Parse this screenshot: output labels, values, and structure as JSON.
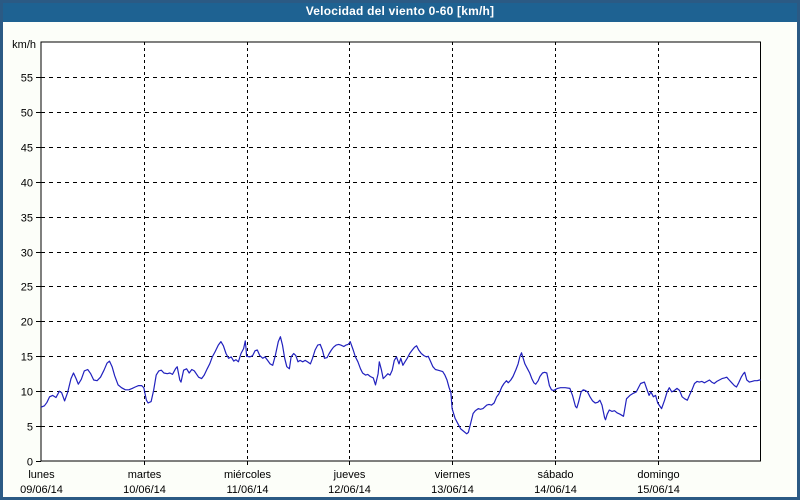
{
  "window": {
    "title": "Velocidad del viento 0-60 [km/h]"
  },
  "colors": {
    "title_bar_bg": "#1E6292",
    "title_text": "#FFFFFF",
    "frame_border": "#2B5A84",
    "page_bg": "#FCFEF9",
    "plot_bg": "#FFFFFF",
    "grid": "#000000",
    "axis_text": "#000000",
    "line": "#2121BE"
  },
  "chart_data": {
    "type": "line",
    "title": "Velocidad del viento 0-60 [km/h]",
    "ylabel": "km/h",
    "ylim": [
      0,
      60
    ],
    "yticks": [
      0,
      5,
      10,
      15,
      20,
      25,
      30,
      35,
      40,
      45,
      50,
      55
    ],
    "grid": true,
    "legend_position": "none",
    "x_unit": "hours_since_monday_00",
    "xlim": [
      0,
      168
    ],
    "x_ticks": [
      {
        "hour": 0,
        "day": "lunes",
        "date": "09/06/14"
      },
      {
        "hour": 24,
        "day": "martes",
        "date": "10/06/14"
      },
      {
        "hour": 48,
        "day": "miércoles",
        "date": "11/06/14"
      },
      {
        "hour": 72,
        "day": "jueves",
        "date": "12/06/14"
      },
      {
        "hour": 96,
        "day": "viernes",
        "date": "13/06/14"
      },
      {
        "hour": 120,
        "day": "sábado",
        "date": "14/06/14"
      },
      {
        "hour": 144,
        "day": "domingo",
        "date": "15/06/14"
      }
    ],
    "series": [
      {
        "name": "wind_speed_kmh",
        "points": [
          [
            0,
            7.7
          ],
          [
            0.8,
            7.9
          ],
          [
            1.4,
            8.4
          ],
          [
            2,
            9.2
          ],
          [
            2.7,
            9.4
          ],
          [
            3.5,
            9.1
          ],
          [
            4.3,
            10.0
          ],
          [
            4.8,
            9.8
          ],
          [
            5.5,
            8.6
          ],
          [
            6.2,
            9.8
          ],
          [
            7,
            11.8
          ],
          [
            7.6,
            12.6
          ],
          [
            8.2,
            11.8
          ],
          [
            8.7,
            11.0
          ],
          [
            9.4,
            11.7
          ],
          [
            10.1,
            12.9
          ],
          [
            10.9,
            13.1
          ],
          [
            11.6,
            12.5
          ],
          [
            12.3,
            11.6
          ],
          [
            13.1,
            11.5
          ],
          [
            13.9,
            12.0
          ],
          [
            14.7,
            13.0
          ],
          [
            15.4,
            14.0
          ],
          [
            16,
            14.3
          ],
          [
            16.6,
            13.5
          ],
          [
            17.2,
            12.2
          ],
          [
            18,
            10.9
          ],
          [
            18.8,
            10.5
          ],
          [
            19.7,
            10.2
          ],
          [
            20.5,
            10.2
          ],
          [
            21.3,
            10.4
          ],
          [
            22,
            10.6
          ],
          [
            22.8,
            10.8
          ],
          [
            23.5,
            10.8
          ],
          [
            24,
            10.5
          ],
          [
            24.6,
            8.7
          ],
          [
            25,
            8.3
          ],
          [
            25.7,
            8.5
          ],
          [
            26.3,
            10.1
          ],
          [
            26.9,
            12.3
          ],
          [
            27.5,
            12.9
          ],
          [
            28.1,
            13.0
          ],
          [
            28.7,
            12.6
          ],
          [
            29.5,
            12.5
          ],
          [
            30.1,
            12.6
          ],
          [
            30.7,
            12.4
          ],
          [
            31.4,
            13.2
          ],
          [
            31.8,
            13.5
          ],
          [
            32.4,
            11.6
          ],
          [
            32.7,
            11.3
          ],
          [
            33.3,
            13.0
          ],
          [
            34,
            13.2
          ],
          [
            34.6,
            12.6
          ],
          [
            35.2,
            13.1
          ],
          [
            35.8,
            12.9
          ],
          [
            36.8,
            12.0
          ],
          [
            37.5,
            11.8
          ],
          [
            38.1,
            12.3
          ],
          [
            38.8,
            13.2
          ],
          [
            39.4,
            13.9
          ],
          [
            40,
            14.9
          ],
          [
            40.6,
            15.6
          ],
          [
            41.4,
            16.6
          ],
          [
            42,
            17.1
          ],
          [
            42.6,
            16.5
          ],
          [
            43.2,
            15.4
          ],
          [
            43.8,
            14.7
          ],
          [
            44.4,
            14.9
          ],
          [
            45,
            14.3
          ],
          [
            45.5,
            14.5
          ],
          [
            46.1,
            14.2
          ],
          [
            46.7,
            15.4
          ],
          [
            47.3,
            16.1
          ],
          [
            47.7,
            17.2
          ],
          [
            47.9,
            16.0
          ],
          [
            48,
            15.0
          ],
          [
            48.8,
            14.9
          ],
          [
            49.4,
            15.1
          ],
          [
            50,
            15.8
          ],
          [
            50.5,
            15.9
          ],
          [
            51.1,
            15.1
          ],
          [
            51.8,
            14.7
          ],
          [
            52.3,
            14.9
          ],
          [
            52.9,
            14.4
          ],
          [
            53.5,
            13.9
          ],
          [
            54.1,
            13.7
          ],
          [
            54.7,
            15.1
          ],
          [
            55.4,
            17.1
          ],
          [
            55.9,
            17.8
          ],
          [
            56.4,
            16.6
          ],
          [
            56.9,
            14.7
          ],
          [
            57.4,
            13.5
          ],
          [
            58,
            13.2
          ],
          [
            58.4,
            14.9
          ],
          [
            59,
            15.4
          ],
          [
            59.5,
            15.1
          ],
          [
            60,
            14.2
          ],
          [
            60.5,
            14.4
          ],
          [
            61.1,
            14.2
          ],
          [
            61.7,
            14.4
          ],
          [
            62.2,
            14.2
          ],
          [
            62.9,
            13.9
          ],
          [
            63.4,
            14.7
          ],
          [
            64,
            15.9
          ],
          [
            64.6,
            16.6
          ],
          [
            65.2,
            16.7
          ],
          [
            65.7,
            15.9
          ],
          [
            66.2,
            14.7
          ],
          [
            66.8,
            14.8
          ],
          [
            67.3,
            15.4
          ],
          [
            67.8,
            15.9
          ],
          [
            68.3,
            16.3
          ],
          [
            68.9,
            16.6
          ],
          [
            69.5,
            16.7
          ],
          [
            70,
            16.6
          ],
          [
            70.7,
            16.4
          ],
          [
            71.2,
            16.6
          ],
          [
            71.7,
            16.7
          ],
          [
            72,
            16.9
          ],
          [
            72.2,
            17.1
          ],
          [
            72.9,
            15.9
          ],
          [
            73.4,
            14.9
          ],
          [
            74,
            14.2
          ],
          [
            74.6,
            13.2
          ],
          [
            75.1,
            12.6
          ],
          [
            75.8,
            12.3
          ],
          [
            76.3,
            12.4
          ],
          [
            76.9,
            12.1
          ],
          [
            77.6,
            11.9
          ],
          [
            78.1,
            10.9
          ],
          [
            78.7,
            12.5
          ],
          [
            79,
            14.2
          ],
          [
            79.5,
            13.0
          ],
          [
            79.9,
            11.8
          ],
          [
            80.4,
            12.1
          ],
          [
            81,
            12.5
          ],
          [
            81.5,
            12.3
          ],
          [
            82,
            13.0
          ],
          [
            82.5,
            14.4
          ],
          [
            83,
            14.9
          ],
          [
            83.6,
            13.9
          ],
          [
            84,
            14.7
          ],
          [
            84.5,
            13.7
          ],
          [
            85,
            14.2
          ],
          [
            85.5,
            14.7
          ],
          [
            86.1,
            15.4
          ],
          [
            86.7,
            15.9
          ],
          [
            87.2,
            16.3
          ],
          [
            87.7,
            16.5
          ],
          [
            88.2,
            15.9
          ],
          [
            88.8,
            15.4
          ],
          [
            89.4,
            15.1
          ],
          [
            90,
            14.9
          ],
          [
            90.4,
            15.0
          ],
          [
            91,
            14.2
          ],
          [
            91.5,
            13.5
          ],
          [
            92.1,
            13.1
          ],
          [
            92.7,
            13.0
          ],
          [
            93.3,
            12.9
          ],
          [
            93.8,
            12.8
          ],
          [
            94.3,
            12.3
          ],
          [
            94.8,
            11.6
          ],
          [
            95.3,
            10.5
          ],
          [
            95.7,
            9.8
          ],
          [
            96,
            7.5
          ],
          [
            96.7,
            6.1
          ],
          [
            97.3,
            5.4
          ],
          [
            98,
            4.6
          ],
          [
            98.6,
            4.3
          ],
          [
            99.4,
            3.9
          ],
          [
            99.8,
            4.1
          ],
          [
            100.4,
            5.6
          ],
          [
            100.9,
            6.8
          ],
          [
            101.4,
            7.2
          ],
          [
            102.1,
            7.5
          ],
          [
            102.6,
            7.4
          ],
          [
            103.2,
            7.5
          ],
          [
            104.1,
            8.0
          ],
          [
            104.6,
            8.1
          ],
          [
            105.2,
            8.0
          ],
          [
            105.8,
            8.3
          ],
          [
            106.4,
            9.2
          ],
          [
            106.9,
            9.6
          ],
          [
            107.6,
            10.6
          ],
          [
            108.1,
            11.1
          ],
          [
            108.7,
            11.5
          ],
          [
            109.1,
            11.2
          ],
          [
            109.7,
            11.6
          ],
          [
            110.2,
            12.1
          ],
          [
            110.9,
            13.1
          ],
          [
            111.4,
            13.9
          ],
          [
            111.8,
            14.9
          ],
          [
            112.2,
            15.5
          ],
          [
            112.6,
            14.7
          ],
          [
            113,
            13.9
          ],
          [
            113.6,
            13.2
          ],
          [
            114.1,
            12.6
          ],
          [
            114.6,
            11.8
          ],
          [
            115.1,
            11.2
          ],
          [
            115.5,
            11.0
          ],
          [
            116.1,
            11.5
          ],
          [
            116.5,
            12.1
          ],
          [
            117.1,
            12.6
          ],
          [
            117.6,
            12.7
          ],
          [
            118.1,
            12.6
          ],
          [
            118.7,
            10.8
          ],
          [
            119.2,
            10.2
          ],
          [
            119.7,
            10.1
          ],
          [
            120,
            10.2
          ],
          [
            120.6,
            10.4
          ],
          [
            121.3,
            10.5
          ],
          [
            122.4,
            10.5
          ],
          [
            123.5,
            10.4
          ],
          [
            124.1,
            9.4
          ],
          [
            124.8,
            7.8
          ],
          [
            125.1,
            7.6
          ],
          [
            125.5,
            8.4
          ],
          [
            126.1,
            9.9
          ],
          [
            126.6,
            10.2
          ],
          [
            127.1,
            10.1
          ],
          [
            127.6,
            9.9
          ],
          [
            128.2,
            9.2
          ],
          [
            128.8,
            8.6
          ],
          [
            129.4,
            8.3
          ],
          [
            130,
            8.4
          ],
          [
            130.5,
            8.7
          ],
          [
            131,
            8.0
          ],
          [
            131.6,
            6.2
          ],
          [
            131.8,
            5.9
          ],
          [
            132.2,
            6.7
          ],
          [
            132.7,
            7.3
          ],
          [
            133.3,
            7.1
          ],
          [
            133.9,
            7.2
          ],
          [
            134.5,
            6.9
          ],
          [
            135.2,
            6.7
          ],
          [
            136,
            6.4
          ],
          [
            136.7,
            8.9
          ],
          [
            137.5,
            9.4
          ],
          [
            138.3,
            9.7
          ],
          [
            139,
            9.9
          ],
          [
            140,
            11.1
          ],
          [
            140.9,
            11.3
          ],
          [
            141.4,
            10.4
          ],
          [
            142,
            9.4
          ],
          [
            142.4,
            9.9
          ],
          [
            143,
            9.2
          ],
          [
            143.5,
            9.4
          ],
          [
            144,
            8.3
          ],
          [
            144.9,
            7.5
          ],
          [
            145.6,
            8.7
          ],
          [
            146.2,
            9.9
          ],
          [
            146.7,
            10.5
          ],
          [
            147.3,
            9.9
          ],
          [
            147.9,
            10.1
          ],
          [
            148.5,
            10.4
          ],
          [
            149.1,
            10.1
          ],
          [
            149.7,
            9.2
          ],
          [
            150.3,
            8.9
          ],
          [
            150.9,
            8.7
          ],
          [
            151.4,
            9.4
          ],
          [
            152,
            10.2
          ],
          [
            152.6,
            11.1
          ],
          [
            153.2,
            11.4
          ],
          [
            153.7,
            11.3
          ],
          [
            154.3,
            11.4
          ],
          [
            154.9,
            11.2
          ],
          [
            155.5,
            11.4
          ],
          [
            156.1,
            11.6
          ],
          [
            156.6,
            11.3
          ],
          [
            157.2,
            11.1
          ],
          [
            157.8,
            11.4
          ],
          [
            158.4,
            11.6
          ],
          [
            159,
            11.8
          ],
          [
            159.6,
            11.9
          ],
          [
            160.1,
            12.0
          ],
          [
            160.7,
            11.6
          ],
          [
            161.3,
            11.2
          ],
          [
            161.9,
            10.8
          ],
          [
            162.4,
            10.6
          ],
          [
            162.9,
            11.2
          ],
          [
            163.5,
            12.0
          ],
          [
            164,
            12.5
          ],
          [
            164.3,
            12.7
          ],
          [
            164.8,
            11.6
          ],
          [
            165.4,
            11.3
          ],
          [
            166,
            11.4
          ],
          [
            166.6,
            11.5
          ],
          [
            167.2,
            11.5
          ],
          [
            167.8,
            11.6
          ],
          [
            168,
            11.6
          ]
        ]
      }
    ]
  }
}
